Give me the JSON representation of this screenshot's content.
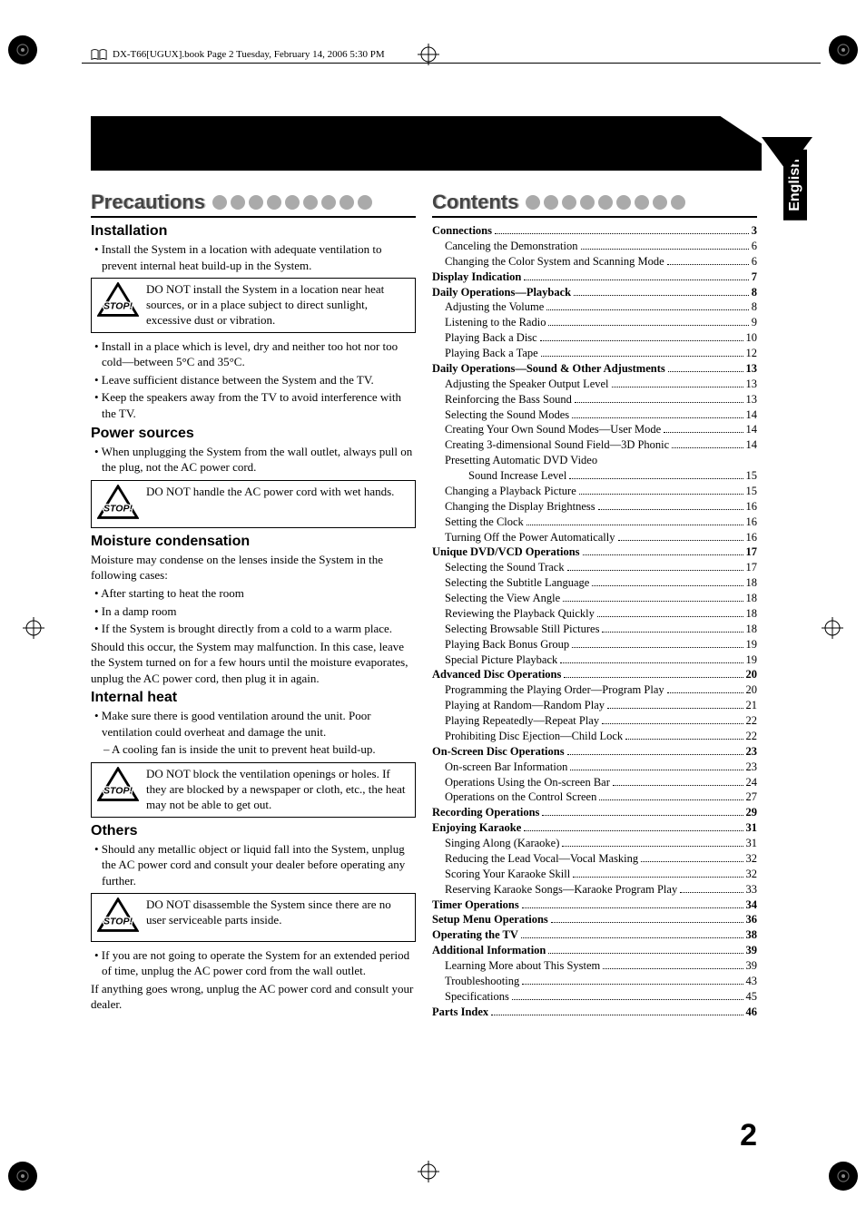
{
  "header": {
    "text": "DX-T66[UGUX].book  Page 2  Tuesday, February 14, 2006  5:30 PM"
  },
  "side_tab": "English",
  "page_number": "2",
  "colors": {
    "ink": "#000000",
    "title_shadow": "#bbbbbb",
    "title_fg": "#444444",
    "dot": "#aaaaaa",
    "background": "#ffffff"
  },
  "precautions": {
    "title": "Precautions",
    "groups": [
      {
        "heading": "Installation",
        "items": [
          {
            "type": "p",
            "text": "• Install the System in a location with adequate ventilation to prevent internal heat build-up in the System."
          },
          {
            "type": "warn",
            "text": "DO NOT install the System in a location near heat sources, or in a place subject to direct sunlight, excessive dust or vibration."
          },
          {
            "type": "p",
            "text": "• Install in a place which is level, dry and neither too hot nor too cold—between 5°C and 35°C."
          },
          {
            "type": "p",
            "text": "• Leave sufficient distance between the System and the TV."
          },
          {
            "type": "p",
            "text": "• Keep the speakers away from the TV to avoid interference with the TV."
          }
        ]
      },
      {
        "heading": "Power sources",
        "items": [
          {
            "type": "p",
            "text": "• When unplugging the System from the wall outlet, always pull on the plug, not the AC power cord."
          },
          {
            "type": "warn",
            "text": "DO NOT handle the AC power cord with wet hands."
          }
        ]
      },
      {
        "heading": "Moisture condensation",
        "items": [
          {
            "type": "p",
            "text": "Moisture may condense on the lenses inside the System in the following cases:"
          },
          {
            "type": "p",
            "text": "• After starting to heat the room"
          },
          {
            "type": "p",
            "text": "• In a damp room"
          },
          {
            "type": "p",
            "text": "• If the System is brought directly from a cold to a warm place."
          },
          {
            "type": "p",
            "text": "Should this occur, the System may malfunction. In this case, leave the System turned on for a few hours until the moisture evaporates, unplug the AC power cord, then plug it in again."
          }
        ]
      },
      {
        "heading": "Internal heat",
        "items": [
          {
            "type": "p",
            "text": "• Make sure there is good ventilation around the unit. Poor ventilation could overheat and damage the unit."
          },
          {
            "type": "p2",
            "text": "– A cooling fan is inside the unit to prevent heat build-up."
          },
          {
            "type": "warn",
            "text": "DO NOT block the ventilation openings or holes. If they are blocked by a newspaper or cloth, etc., the heat may not be able to get out."
          }
        ]
      },
      {
        "heading": "Others",
        "items": [
          {
            "type": "p",
            "text": "• Should any metallic object or liquid fall into the System, unplug the AC power cord and consult your dealer before operating any further."
          },
          {
            "type": "warn",
            "text": "DO NOT disassemble the System since there are no user serviceable parts inside."
          },
          {
            "type": "p",
            "text": "• If you are not going to operate the System for an extended period of time, unplug the AC power cord from the wall outlet."
          },
          {
            "type": "p",
            "text": "If anything goes wrong, unplug the AC power cord and consult your dealer."
          }
        ]
      }
    ]
  },
  "contents": {
    "title": "Contents",
    "entries": [
      {
        "label": "Connections",
        "page": "3",
        "bold": true
      },
      {
        "label": "Canceling the Demonstration",
        "page": "6",
        "sub": true
      },
      {
        "label": "Changing the Color System and Scanning Mode",
        "page": "6",
        "sub": true
      },
      {
        "label": "Display Indication",
        "page": "7",
        "bold": true
      },
      {
        "label": "Daily Operations—Playback",
        "page": "8",
        "bold": true
      },
      {
        "label": "Adjusting the Volume",
        "page": "8",
        "sub": true
      },
      {
        "label": "Listening to the Radio",
        "page": "9",
        "sub": true
      },
      {
        "label": "Playing Back a Disc",
        "page": "10",
        "sub": true
      },
      {
        "label": "Playing Back a Tape",
        "page": "12",
        "sub": true
      },
      {
        "label": "Daily Operations—Sound & Other Adjustments",
        "page": "13",
        "bold": true
      },
      {
        "label": "Adjusting the Speaker Output Level",
        "page": "13",
        "sub": true
      },
      {
        "label": "Reinforcing the Bass Sound",
        "page": "13",
        "sub": true
      },
      {
        "label": "Selecting the Sound Modes",
        "page": "14",
        "sub": true
      },
      {
        "label": "Creating Your Own Sound Modes—User Mode",
        "page": "14",
        "sub": true
      },
      {
        "label": "Creating 3-dimensional Sound Field—3D Phonic",
        "page": "14",
        "sub": true
      },
      {
        "label": "Presetting Automatic DVD Video",
        "sub": true,
        "noleader": true
      },
      {
        "label": "Sound Increase Level",
        "page": "15",
        "sub2": true
      },
      {
        "label": "Changing a Playback Picture",
        "page": "15",
        "sub": true
      },
      {
        "label": "Changing the Display Brightness",
        "page": "16",
        "sub": true
      },
      {
        "label": "Setting the Clock",
        "page": "16",
        "sub": true
      },
      {
        "label": "Turning Off the Power Automatically",
        "page": "16",
        "sub": true
      },
      {
        "label": "Unique DVD/VCD Operations",
        "page": "17",
        "bold": true
      },
      {
        "label": "Selecting the Sound Track",
        "page": "17",
        "sub": true
      },
      {
        "label": "Selecting the Subtitle Language",
        "page": "18",
        "sub": true
      },
      {
        "label": "Selecting the View Angle",
        "page": "18",
        "sub": true
      },
      {
        "label": "Reviewing the Playback Quickly",
        "page": "18",
        "sub": true
      },
      {
        "label": "Selecting Browsable Still Pictures",
        "page": "18",
        "sub": true
      },
      {
        "label": "Playing Back Bonus Group",
        "page": "19",
        "sub": true
      },
      {
        "label": "Special Picture Playback",
        "page": "19",
        "sub": true
      },
      {
        "label": "Advanced Disc Operations",
        "page": "20",
        "bold": true
      },
      {
        "label": "Programming the Playing Order—Program Play",
        "page": "20",
        "sub": true
      },
      {
        "label": "Playing at Random—Random Play",
        "page": "21",
        "sub": true
      },
      {
        "label": "Playing Repeatedly—Repeat Play",
        "page": "22",
        "sub": true
      },
      {
        "label": "Prohibiting Disc Ejection—Child Lock",
        "page": "22",
        "sub": true
      },
      {
        "label": "On-Screen Disc Operations",
        "page": "23",
        "bold": true
      },
      {
        "label": "On-screen Bar Information",
        "page": "23",
        "sub": true
      },
      {
        "label": "Operations Using the On-screen Bar",
        "page": "24",
        "sub": true
      },
      {
        "label": "Operations on the Control Screen",
        "page": "27",
        "sub": true
      },
      {
        "label": "Recording Operations",
        "page": "29",
        "bold": true
      },
      {
        "label": "Enjoying Karaoke",
        "page": "31",
        "bold": true
      },
      {
        "label": "Singing Along (Karaoke)",
        "page": "31",
        "sub": true
      },
      {
        "label": "Reducing the Lead Vocal—Vocal Masking",
        "page": "32",
        "sub": true
      },
      {
        "label": "Scoring Your Karaoke Skill",
        "page": "32",
        "sub": true
      },
      {
        "label": "Reserving Karaoke Songs—Karaoke Program Play",
        "page": "33",
        "sub": true
      },
      {
        "label": "Timer Operations",
        "page": "34",
        "bold": true
      },
      {
        "label": "Setup Menu Operations",
        "page": "36",
        "bold": true
      },
      {
        "label": "Operating the TV",
        "page": "38",
        "bold": true
      },
      {
        "label": "Additional Information",
        "page": "39",
        "bold": true
      },
      {
        "label": "Learning More about This System",
        "page": "39",
        "sub": true
      },
      {
        "label": "Troubleshooting",
        "page": "43",
        "sub": true
      },
      {
        "label": "Specifications",
        "page": "45",
        "sub": true
      },
      {
        "label": "Parts Index",
        "page": "46",
        "bold": true
      }
    ]
  }
}
